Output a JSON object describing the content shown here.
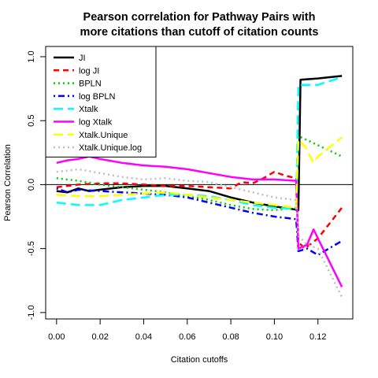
{
  "chart_data": {
    "type": "line",
    "title_line1": "Pearson correlation for Pathway Pairs with",
    "title_line2": "more citations than cutoff of citation counts",
    "xlabel": "Citation cutoffs",
    "ylabel": "Pearson Correlation",
    "xlim": [
      -0.005,
      0.136
    ],
    "ylim": [
      -1.05,
      1.08
    ],
    "xticks": [
      0.0,
      0.02,
      0.04,
      0.06,
      0.08,
      0.1,
      0.12
    ],
    "xtick_labels": [
      "0.00",
      "0.02",
      "0.04",
      "0.06",
      "0.08",
      "0.10",
      "0.12"
    ],
    "yticks": [
      -1.0,
      -0.5,
      0.0,
      0.5,
      1.0
    ],
    "ytick_labels": [
      "-1.0",
      "-0.5",
      "0.0",
      "0.5",
      "1.0"
    ],
    "hline": 0,
    "legend_position": "top-left",
    "series": [
      {
        "name": "JI",
        "color": "#000000",
        "dash": "solid",
        "x": [
          0,
          0.005,
          0.01,
          0.015,
          0.02,
          0.03,
          0.04,
          0.05,
          0.06,
          0.07,
          0.08,
          0.09,
          0.1,
          0.108,
          0.111,
          0.112,
          0.12,
          0.131
        ],
        "y": [
          -0.05,
          -0.06,
          -0.03,
          -0.05,
          -0.04,
          -0.02,
          -0.01,
          -0.01,
          -0.03,
          -0.05,
          -0.1,
          -0.14,
          -0.17,
          -0.19,
          -0.2,
          0.82,
          0.83,
          0.85
        ]
      },
      {
        "name": "log JI",
        "color": "#ff0000",
        "dash": "dashed",
        "x": [
          0,
          0.01,
          0.02,
          0.03,
          0.04,
          0.05,
          0.06,
          0.07,
          0.08,
          0.085,
          0.09,
          0.095,
          0.1,
          0.105,
          0.11,
          0.111,
          0.114,
          0.12,
          0.131
        ],
        "y": [
          -0.02,
          0.0,
          0.01,
          0.01,
          0.0,
          -0.01,
          -0.01,
          -0.02,
          -0.03,
          0.02,
          0.01,
          0.05,
          0.1,
          0.07,
          0.05,
          -0.45,
          -0.5,
          -0.42,
          -0.18
        ]
      },
      {
        "name": "BPLN",
        "color": "#00cc00",
        "dash": "dotted",
        "x": [
          0,
          0.01,
          0.02,
          0.03,
          0.04,
          0.05,
          0.06,
          0.07,
          0.08,
          0.09,
          0.1,
          0.11,
          0.111,
          0.131
        ],
        "y": [
          0.05,
          0.03,
          0.0,
          -0.02,
          -0.04,
          -0.06,
          -0.09,
          -0.12,
          -0.16,
          -0.19,
          -0.2,
          -0.18,
          0.38,
          0.22
        ]
      },
      {
        "name": "log BPLN",
        "color": "#0000ff",
        "dash": "dashdot",
        "x": [
          0,
          0.005,
          0.01,
          0.02,
          0.03,
          0.04,
          0.05,
          0.06,
          0.07,
          0.08,
          0.09,
          0.1,
          0.11,
          0.111,
          0.115,
          0.12,
          0.131
        ],
        "y": [
          -0.03,
          -0.06,
          -0.04,
          -0.05,
          -0.06,
          -0.07,
          -0.08,
          -0.1,
          -0.14,
          -0.18,
          -0.22,
          -0.25,
          -0.27,
          -0.52,
          -0.5,
          -0.55,
          -0.44
        ]
      },
      {
        "name": "Xtalk",
        "color": "#00ffff",
        "dash": "longdash",
        "x": [
          0,
          0.005,
          0.01,
          0.02,
          0.03,
          0.04,
          0.05,
          0.06,
          0.07,
          0.08,
          0.09,
          0.1,
          0.11,
          0.111,
          0.12,
          0.131
        ],
        "y": [
          -0.14,
          -0.15,
          -0.16,
          -0.16,
          -0.12,
          -0.1,
          -0.08,
          -0.08,
          -0.09,
          -0.12,
          -0.16,
          -0.18,
          -0.19,
          0.78,
          0.78,
          0.84
        ]
      },
      {
        "name": "log Xtalk",
        "color": "#ff00ff",
        "dash": "solid",
        "x": [
          0,
          0.005,
          0.01,
          0.015,
          0.02,
          0.03,
          0.04,
          0.05,
          0.06,
          0.07,
          0.08,
          0.09,
          0.1,
          0.11,
          0.111,
          0.115,
          0.118,
          0.12,
          0.131
        ],
        "y": [
          0.17,
          0.19,
          0.2,
          0.22,
          0.2,
          0.17,
          0.15,
          0.14,
          0.12,
          0.09,
          0.06,
          0.04,
          0.04,
          0.03,
          -0.5,
          -0.47,
          -0.35,
          -0.42,
          -0.8
        ]
      },
      {
        "name": "Xtalk.Unique",
        "color": "#ffff00",
        "dash": "longdash",
        "x": [
          0,
          0.01,
          0.02,
          0.03,
          0.04,
          0.05,
          0.06,
          0.07,
          0.08,
          0.09,
          0.1,
          0.11,
          0.111,
          0.114,
          0.118,
          0.12,
          0.131
        ],
        "y": [
          -0.08,
          -0.09,
          -0.09,
          -0.08,
          -0.07,
          -0.06,
          -0.08,
          -0.1,
          -0.12,
          -0.14,
          -0.16,
          -0.18,
          0.35,
          0.3,
          0.17,
          0.22,
          0.37
        ]
      },
      {
        "name": "Xtalk.Unique.log",
        "color": "#bebebe",
        "dash": "dotted",
        "x": [
          0,
          0.005,
          0.01,
          0.02,
          0.03,
          0.04,
          0.05,
          0.06,
          0.07,
          0.08,
          0.09,
          0.1,
          0.11,
          0.111,
          0.115,
          0.12,
          0.131
        ],
        "y": [
          0.1,
          0.11,
          0.12,
          0.09,
          0.06,
          0.04,
          0.05,
          0.03,
          0.02,
          -0.02,
          -0.06,
          -0.1,
          -0.12,
          -0.4,
          -0.47,
          -0.5,
          -0.88
        ]
      }
    ]
  }
}
